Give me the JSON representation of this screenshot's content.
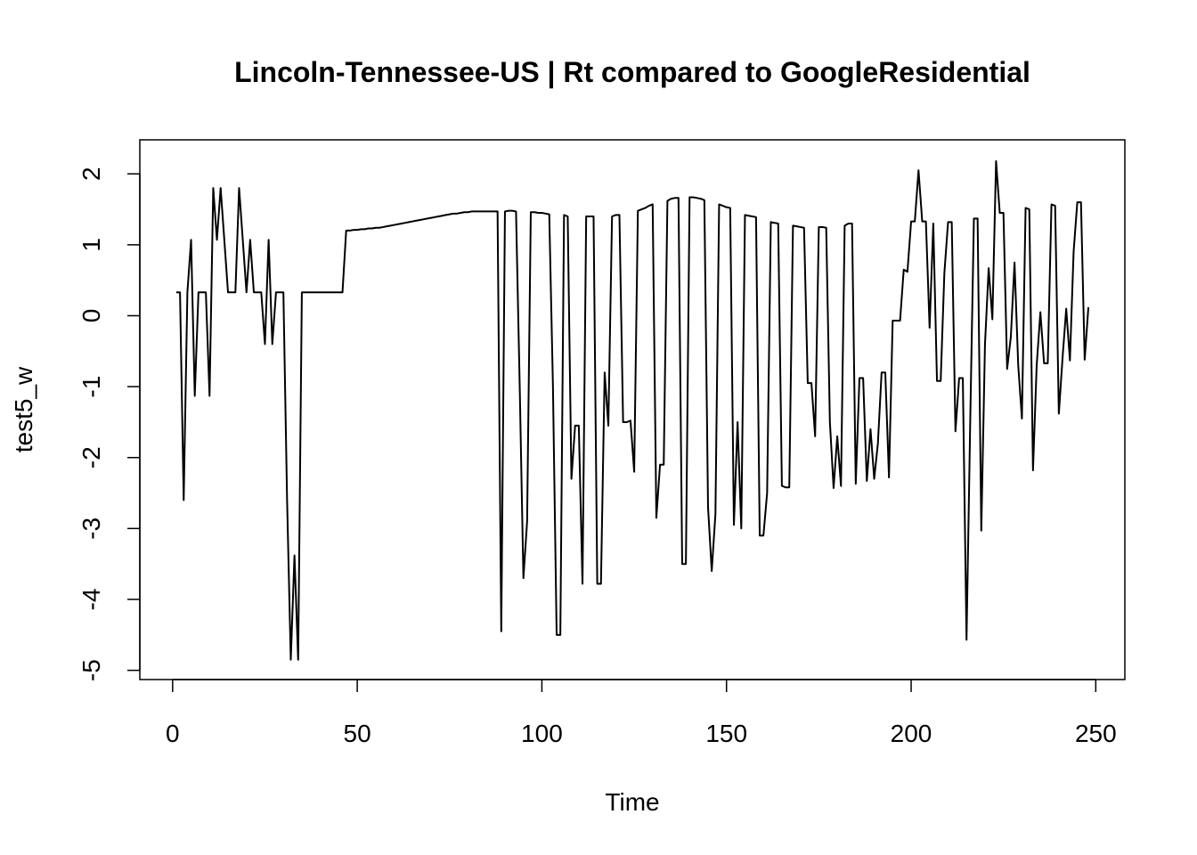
{
  "chart_data": {
    "type": "line",
    "title": "Lincoln-Tennessee-US | Rt compared to GoogleResidential",
    "xlabel": "Time",
    "ylabel": "test5_w",
    "color": "#000000",
    "xlim": [
      -8.88,
      257.88
    ],
    "ylim": [
      -5.13,
      2.48
    ],
    "xticks": [
      0,
      50,
      100,
      150,
      200,
      250
    ],
    "yticks": [
      -5,
      -4,
      -3,
      -2,
      -1,
      0,
      1,
      2
    ],
    "x": [
      1,
      2,
      3,
      4,
      5,
      6,
      7,
      8,
      9,
      10,
      11,
      12,
      13,
      14,
      15,
      16,
      17,
      18,
      19,
      20,
      21,
      22,
      23,
      24,
      25,
      26,
      27,
      28,
      29,
      30,
      31,
      32,
      33,
      34,
      35,
      36,
      37,
      38,
      39,
      40,
      41,
      42,
      43,
      44,
      45,
      46,
      47,
      48,
      49,
      50,
      51,
      52,
      53,
      54,
      55,
      56,
      57,
      58,
      59,
      60,
      61,
      62,
      63,
      64,
      65,
      66,
      67,
      68,
      69,
      70,
      71,
      72,
      73,
      74,
      75,
      76,
      77,
      78,
      79,
      80,
      81,
      82,
      83,
      84,
      85,
      86,
      87,
      88,
      89,
      90,
      91,
      92,
      93,
      94,
      95,
      96,
      97,
      98,
      99,
      100,
      101,
      102,
      103,
      104,
      105,
      106,
      107,
      108,
      109,
      110,
      111,
      112,
      113,
      114,
      115,
      116,
      117,
      118,
      119,
      120,
      121,
      122,
      123,
      124,
      125,
      126,
      127,
      128,
      129,
      130,
      131,
      132,
      133,
      134,
      135,
      136,
      137,
      138,
      139,
      140,
      141,
      142,
      143,
      144,
      145,
      146,
      147,
      148,
      149,
      150,
      151,
      152,
      153,
      154,
      155,
      156,
      157,
      158,
      159,
      160,
      161,
      162,
      163,
      164,
      165,
      166,
      167,
      168,
      169,
      170,
      171,
      172,
      173,
      174,
      175,
      176,
      177,
      178,
      179,
      180,
      181,
      182,
      183,
      184,
      185,
      186,
      187,
      188,
      189,
      190,
      191,
      192,
      193,
      194,
      195,
      196,
      197,
      198,
      199,
      200,
      201,
      202,
      203,
      204,
      205,
      206,
      207,
      208,
      209,
      210,
      211,
      212,
      213,
      214,
      215,
      216,
      217,
      218,
      219,
      220,
      221,
      222,
      223,
      224,
      225,
      226,
      227,
      228,
      229,
      230,
      231,
      232,
      233,
      234,
      235,
      236,
      237,
      238,
      239,
      240,
      241,
      242,
      243,
      244,
      245,
      246,
      247,
      248
    ],
    "values": [
      0.33,
      0.33,
      -2.6,
      0.33,
      1.07,
      -1.13,
      0.33,
      0.33,
      0.33,
      -1.13,
      1.8,
      1.07,
      1.8,
      1.07,
      0.33,
      0.33,
      0.33,
      1.8,
      1.07,
      0.33,
      1.07,
      0.33,
      0.33,
      0.33,
      -0.4,
      1.07,
      -0.4,
      0.33,
      0.33,
      0.33,
      -2.6,
      -4.85,
      -3.38,
      -4.85,
      0.33,
      0.33,
      0.33,
      0.33,
      0.33,
      0.33,
      0.33,
      0.33,
      0.33,
      0.33,
      0.33,
      0.33,
      1.2,
      1.2,
      1.21,
      1.21,
      1.22,
      1.22,
      1.23,
      1.23,
      1.24,
      1.24,
      1.25,
      1.26,
      1.27,
      1.28,
      1.29,
      1.3,
      1.31,
      1.32,
      1.33,
      1.34,
      1.35,
      1.36,
      1.37,
      1.38,
      1.39,
      1.4,
      1.41,
      1.42,
      1.43,
      1.44,
      1.44,
      1.45,
      1.46,
      1.46,
      1.47,
      1.47,
      1.47,
      1.47,
      1.47,
      1.47,
      1.47,
      1.47,
      -4.45,
      1.47,
      1.48,
      1.48,
      1.47,
      -1.0,
      -3.7,
      -2.9,
      1.46,
      1.46,
      1.45,
      1.45,
      1.44,
      1.43,
      -1.0,
      -4.5,
      -4.5,
      1.42,
      1.4,
      -2.3,
      -1.55,
      -1.55,
      -3.78,
      1.4,
      1.4,
      1.4,
      -3.78,
      -3.78,
      -0.8,
      -1.55,
      1.4,
      1.42,
      1.42,
      -1.5,
      -1.5,
      -1.48,
      -2.2,
      1.48,
      1.5,
      1.52,
      1.55,
      1.57,
      -2.85,
      -2.1,
      -2.1,
      1.62,
      1.65,
      1.66,
      1.66,
      -3.5,
      -3.5,
      1.67,
      1.67,
      1.66,
      1.65,
      1.63,
      -2.7,
      -3.6,
      -2.8,
      1.57,
      1.55,
      1.53,
      1.52,
      -2.95,
      -1.5,
      -3.0,
      1.42,
      1.41,
      1.4,
      1.39,
      -3.1,
      -3.1,
      -2.5,
      1.32,
      1.31,
      1.3,
      -2.4,
      -2.42,
      -2.42,
      1.27,
      1.26,
      1.25,
      1.24,
      -0.95,
      -0.95,
      -1.7,
      1.25,
      1.25,
      1.24,
      -1.5,
      -2.43,
      -1.7,
      -2.4,
      1.27,
      1.3,
      1.3,
      -2.37,
      -0.88,
      -0.88,
      -2.33,
      -1.6,
      -2.3,
      -1.8,
      -0.8,
      -0.8,
      -2.28,
      -0.07,
      -0.07,
      -0.07,
      0.65,
      0.62,
      1.33,
      1.33,
      2.05,
      1.33,
      1.33,
      -0.17,
      1.3,
      -0.92,
      -0.92,
      0.6,
      1.32,
      1.32,
      -1.63,
      -0.88,
      -0.88,
      -4.57,
      -1.5,
      1.37,
      1.37,
      -3.03,
      -0.4,
      0.67,
      -0.05,
      2.18,
      1.45,
      1.45,
      -0.75,
      -0.3,
      0.75,
      -0.7,
      -1.45,
      1.52,
      1.5,
      -2.18,
      -0.7,
      0.05,
      -0.67,
      -0.67,
      1.57,
      1.55,
      -1.38,
      -0.6,
      0.1,
      -0.63,
      0.9,
      1.6,
      1.6,
      -0.62,
      0.12
    ]
  }
}
